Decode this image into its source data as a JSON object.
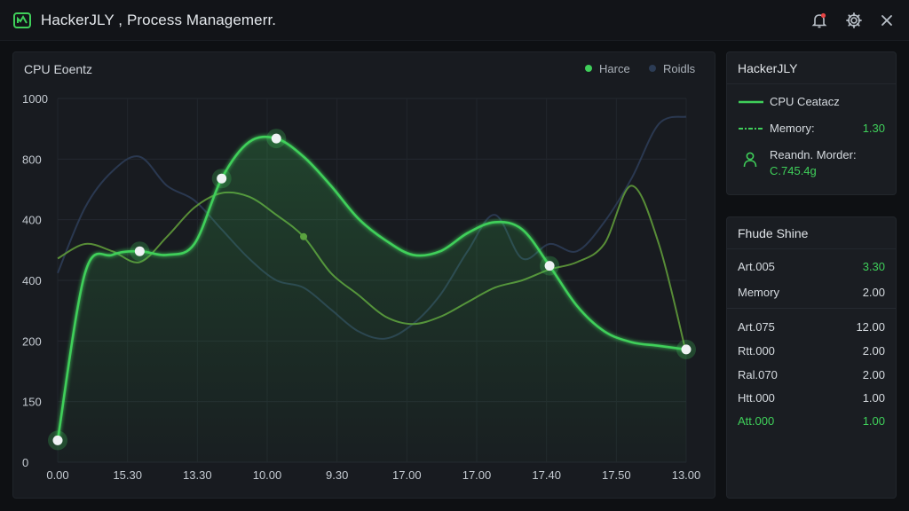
{
  "window": {
    "title": "HackerJLY , Process Managemerr."
  },
  "chart_panel": {
    "title": "CPU Eoentz",
    "legend": [
      {
        "label": "Harce",
        "color": "#3fcf5a"
      },
      {
        "label": "Roidls",
        "color": "#2c3c55"
      }
    ]
  },
  "chart_data": {
    "type": "line",
    "y_ticks": [
      "1000",
      "800",
      "400",
      "400",
      "200",
      "150",
      "0"
    ],
    "x_ticks": [
      "0.00",
      "15.30",
      "13.30",
      "10.00",
      "9.30",
      "17.00",
      "17.00",
      "17.40",
      "17.50",
      "13.00"
    ],
    "grid": true,
    "series": [
      {
        "name": "Harce",
        "color": "#3fcf5a",
        "values": [
          0.06,
          0.52,
          0.57,
          0.58,
          0.57,
          0.6,
          0.78,
          0.88,
          0.89,
          0.84,
          0.76,
          0.67,
          0.61,
          0.57,
          0.58,
          0.63,
          0.66,
          0.64,
          0.54,
          0.43,
          0.36,
          0.33,
          0.32,
          0.31
        ],
        "markers": [
          0,
          3,
          6,
          8,
          18,
          23
        ]
      },
      {
        "color": "#2c3c55",
        "values": [
          0.52,
          0.7,
          0.8,
          0.84,
          0.76,
          0.72,
          0.64,
          0.56,
          0.5,
          0.48,
          0.42,
          0.36,
          0.34,
          0.38,
          0.46,
          0.58,
          0.68,
          0.56,
          0.6,
          0.58,
          0.66,
          0.78,
          0.93,
          0.95
        ]
      },
      {
        "color": "#5f9a3a",
        "values": [
          0.56,
          0.6,
          0.58,
          0.55,
          0.62,
          0.7,
          0.74,
          0.73,
          0.68,
          0.62,
          0.52,
          0.46,
          0.4,
          0.38,
          0.4,
          0.44,
          0.48,
          0.5,
          0.53,
          0.55,
          0.6,
          0.76,
          0.6,
          0.3
        ],
        "markers": [
          9
        ]
      }
    ]
  },
  "side_panel_1": {
    "title": "HackerJLY",
    "rows": [
      {
        "label": "CPU Ceatacz",
        "value": ""
      },
      {
        "label": "Memory:",
        "value": "1.30"
      },
      {
        "label": "Reandn. Morder:",
        "value": "C.745.4g"
      }
    ]
  },
  "side_panel_2": {
    "title": "Fhude Shine",
    "rows": [
      {
        "label": "Art.005",
        "value": "3.30",
        "accent": true
      },
      {
        "label": "Memory",
        "value": "2.00"
      },
      {
        "label": "Art.075",
        "value": "12.00"
      },
      {
        "label": "Rtt.000",
        "value": "2.00"
      },
      {
        "label": "Ral.070",
        "value": "2.00"
      },
      {
        "label": "Htt.000",
        "value": "1.00"
      },
      {
        "label": "Att.000",
        "value": "1.00",
        "accent": true
      }
    ]
  }
}
